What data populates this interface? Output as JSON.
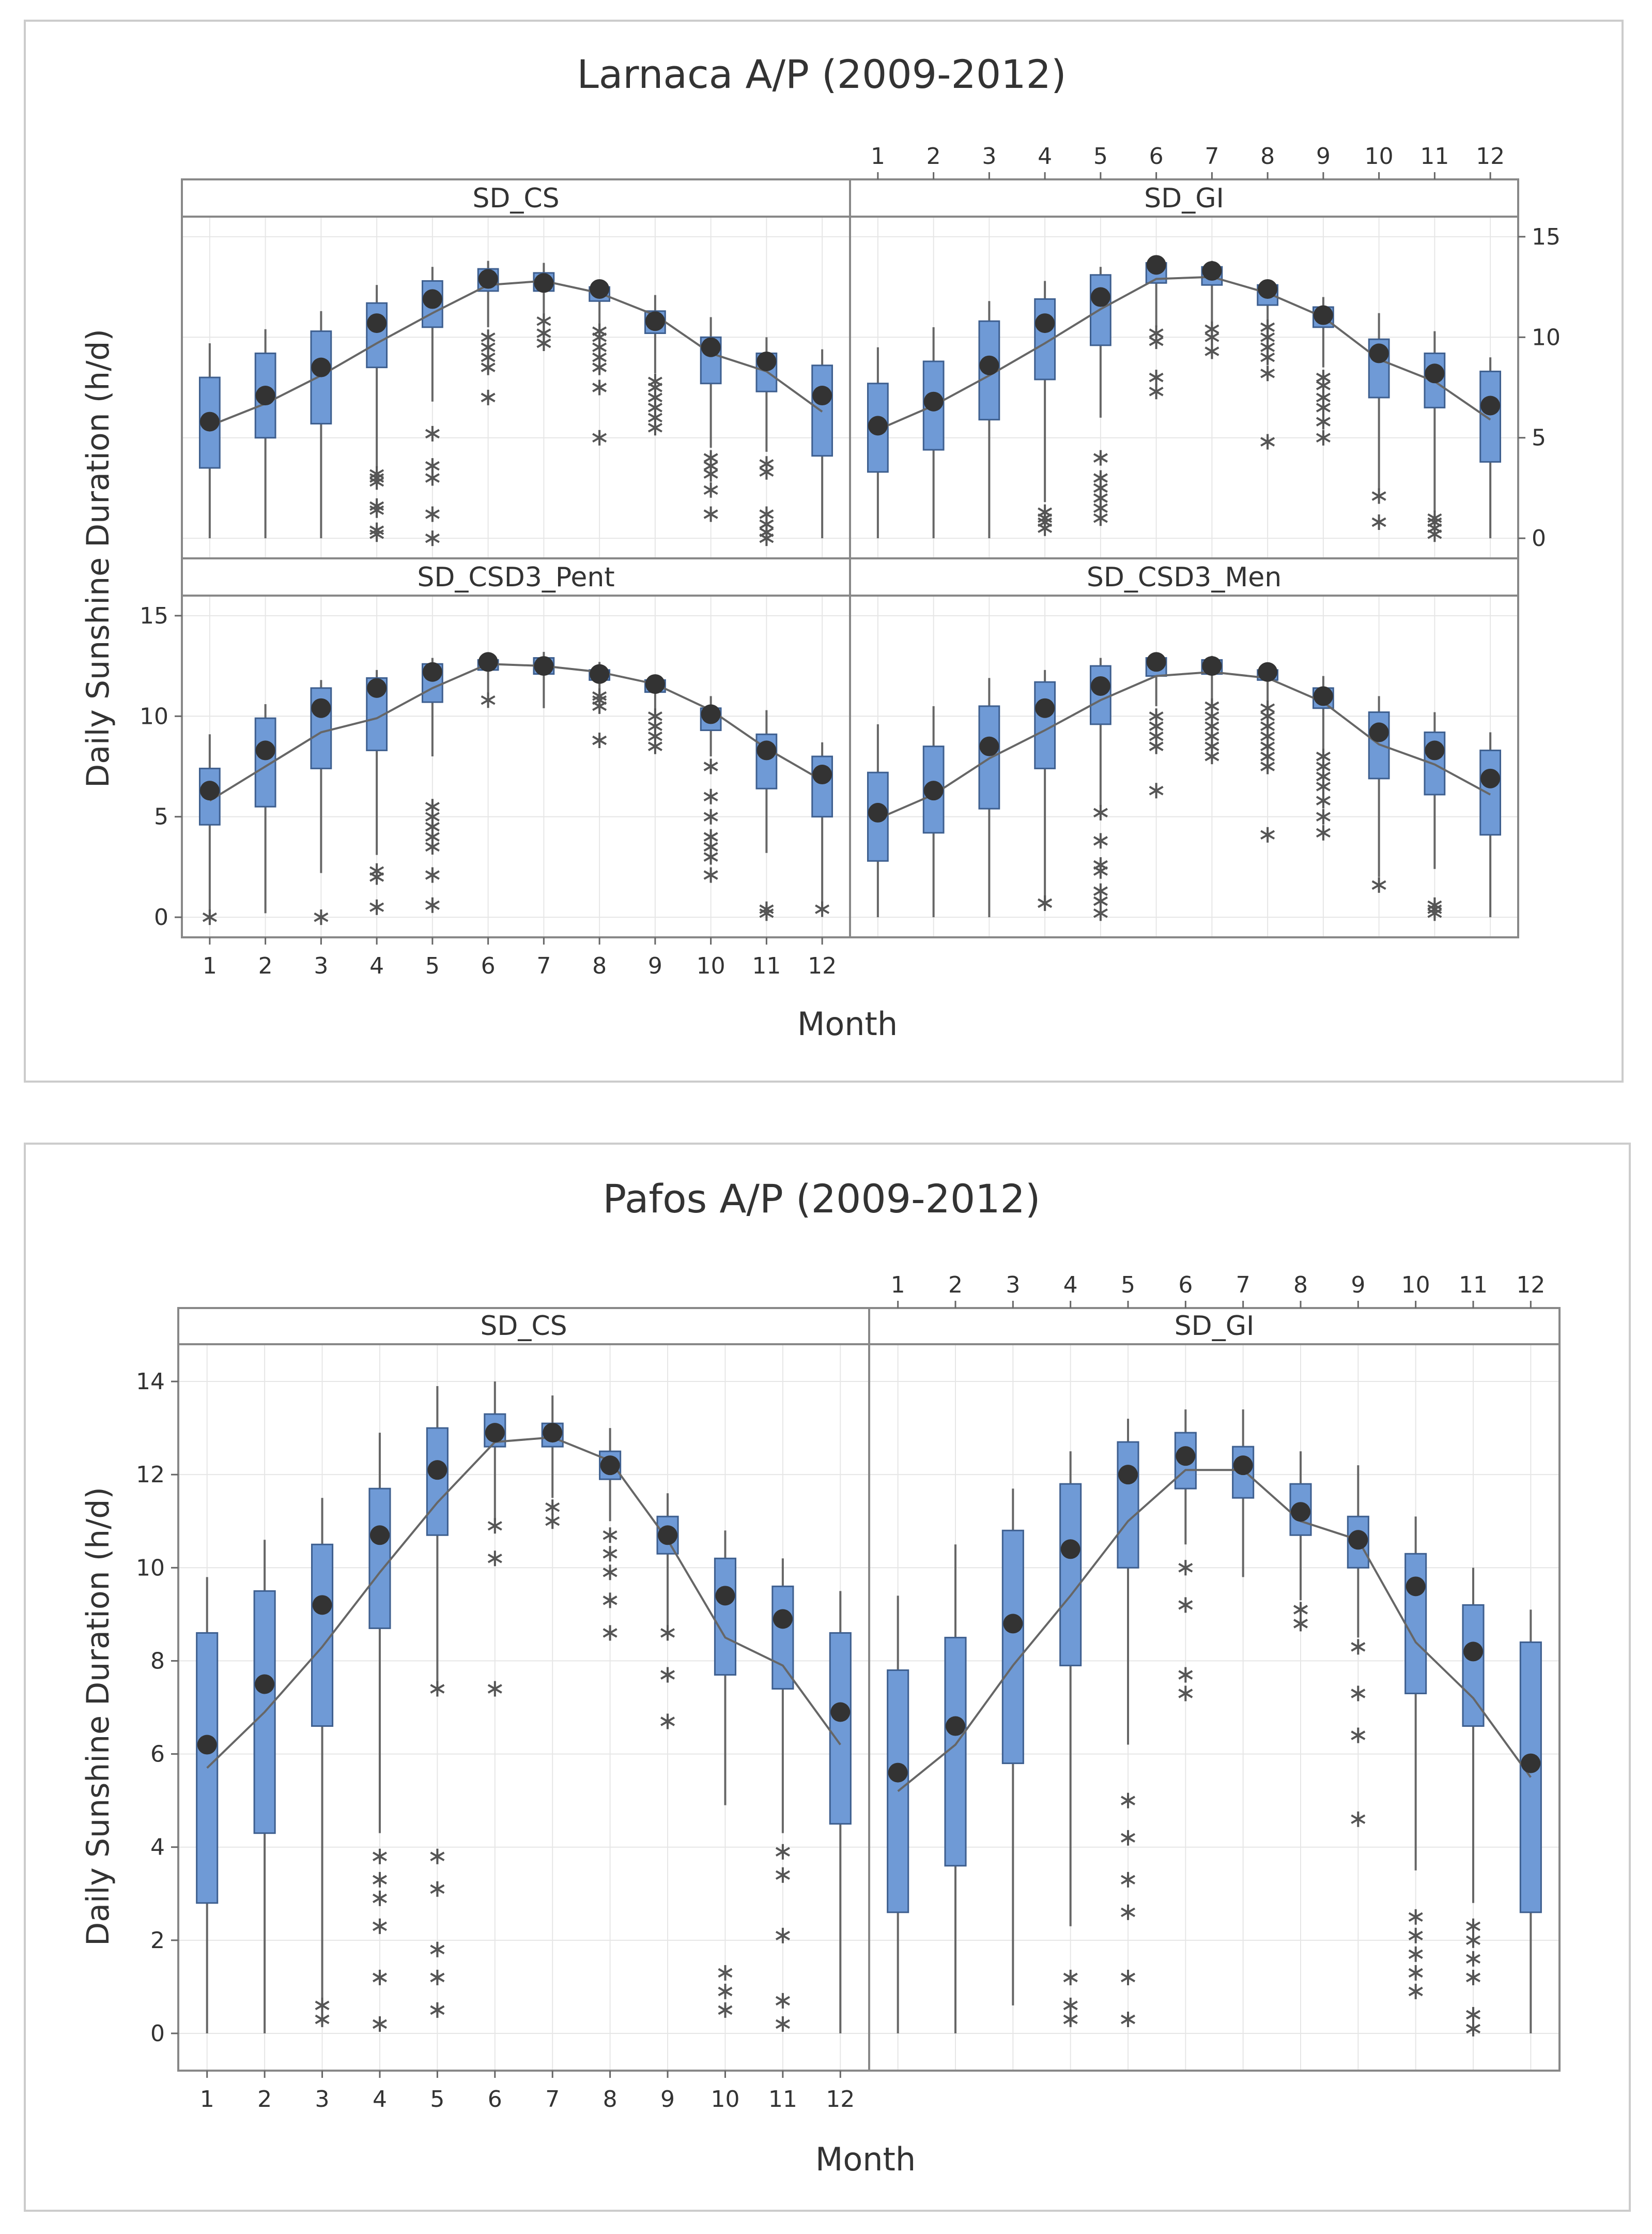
{
  "figures": [
    {
      "title": "Larnaca A/P (2009-2012)",
      "ylabel": "Daily Sunshine Duration (h/d)",
      "xlabel": "Month",
      "yticks": [
        "0",
        "5",
        "10",
        "15"
      ],
      "months": [
        "1",
        "2",
        "3",
        "4",
        "5",
        "6",
        "7",
        "8",
        "9",
        "10",
        "11",
        "12"
      ]
    },
    {
      "title": "Pafos A/P (2009-2012)",
      "ylabel": "Daily Sunshine Duration (h/d)",
      "xlabel": "Month",
      "yticks": [
        "0",
        "2",
        "4",
        "6",
        "8",
        "10",
        "12",
        "14"
      ],
      "months": [
        "1",
        "2",
        "3",
        "4",
        "5",
        "6",
        "7",
        "8",
        "9",
        "10",
        "11",
        "12"
      ]
    }
  ],
  "colors": {
    "box": "#6f9ad6",
    "box_edge": "#3e5f8f",
    "median": "#333333",
    "line": "#666666",
    "grid": "#e6e6e6",
    "frame": "#888888"
  },
  "chart_data": [
    {
      "type": "boxplot",
      "title": "Larnaca A/P (2009-2012)",
      "xlabel": "Month",
      "ylabel": "Daily Sunshine Duration (h/d)",
      "ylim": [
        -1,
        16
      ],
      "categories": [
        "1",
        "2",
        "3",
        "4",
        "5",
        "6",
        "7",
        "8",
        "9",
        "10",
        "11",
        "12"
      ],
      "panels": [
        {
          "name": "SD_CS",
          "q1": [
            3.5,
            5.0,
            5.7,
            8.5,
            10.5,
            12.3,
            12.3,
            11.8,
            10.2,
            7.7,
            7.3,
            4.1
          ],
          "q3": [
            8.0,
            9.2,
            10.3,
            11.7,
            12.8,
            13.4,
            13.2,
            12.5,
            11.3,
            10.0,
            9.2,
            8.6
          ],
          "whisker_low": [
            0,
            0,
            0,
            3.5,
            6.8,
            10.5,
            10.0,
            9.8,
            8.2,
            4.5,
            4.3,
            0
          ],
          "whisker_high": [
            9.7,
            10.4,
            11.3,
            12.6,
            13.5,
            13.8,
            13.7,
            12.8,
            12.1,
            11.0,
            10.0,
            9.4
          ],
          "mean": [
            5.8,
            7.1,
            8.5,
            10.7,
            11.9,
            12.9,
            12.7,
            12.4,
            10.8,
            9.5,
            8.8,
            7.1
          ],
          "mean_line": [
            5.6,
            6.7,
            8.1,
            9.7,
            11.2,
            12.6,
            12.8,
            12.2,
            11.1,
            9.2,
            8.3,
            6.3
          ],
          "outliers": [
            [],
            [],
            [],
            [
              0.2,
              0.4,
              1.4,
              1.6,
              2.8,
              3.0,
              3.2
            ],
            [
              0,
              1.2,
              3.0,
              3.6,
              5.2
            ],
            [
              7.0,
              8.5,
              9.0,
              9.5,
              10.0
            ],
            [
              9.7,
              10.2,
              10.8
            ],
            [
              5.0,
              7.5,
              8.5,
              9.0,
              9.5,
              10.0,
              10.3
            ],
            [
              5.5,
              6.0,
              6.5,
              7.0,
              7.5,
              7.8
            ],
            [
              1.2,
              2.4,
              3.2,
              3.6,
              4.0
            ],
            [
              0,
              0.3,
              0.7,
              1.2,
              3.3,
              3.7
            ],
            []
          ]
        },
        {
          "name": "SD_GI",
          "q1": [
            3.3,
            4.4,
            5.9,
            7.9,
            9.6,
            12.7,
            12.6,
            11.6,
            10.5,
            7.0,
            6.5,
            3.8
          ],
          "q3": [
            7.7,
            8.8,
            10.8,
            11.9,
            13.1,
            13.7,
            13.5,
            12.6,
            11.5,
            9.9,
            9.2,
            8.3
          ],
          "whisker_low": [
            0,
            0,
            0,
            1.8,
            6.0,
            10.5,
            10.5,
            9.8,
            8.5,
            2.4,
            1.3,
            0
          ],
          "whisker_high": [
            9.5,
            10.5,
            11.8,
            12.8,
            13.5,
            13.9,
            13.8,
            12.8,
            12.0,
            11.2,
            10.3,
            9.0
          ],
          "mean": [
            5.6,
            6.8,
            8.6,
            10.7,
            12.0,
            13.6,
            13.3,
            12.4,
            11.1,
            9.2,
            8.2,
            6.6
          ],
          "mean_line": [
            5.4,
            6.6,
            8.1,
            9.7,
            11.4,
            12.9,
            13.0,
            12.2,
            11.0,
            8.9,
            7.8,
            5.9
          ],
          "outliers": [
            [],
            [],
            [],
            [
              0.5,
              0.8,
              1.0,
              1.3
            ],
            [
              1.0,
              1.5,
              2.0,
              2.5,
              3.0,
              4.0
            ],
            [
              7.3,
              8.0,
              9.8,
              10.2
            ],
            [
              9.3,
              10.0,
              10.4
            ],
            [
              4.8,
              8.2,
              9.0,
              9.5,
              10.0,
              10.5
            ],
            [
              5.0,
              5.8,
              6.5,
              7.0,
              7.6,
              8.0
            ],
            [
              0.8,
              2.1
            ],
            [
              0.2,
              0.5,
              0.8,
              1.0
            ],
            []
          ]
        },
        {
          "name": "SD_CSD3_Pent",
          "q1": [
            4.6,
            5.5,
            7.4,
            8.3,
            10.7,
            12.3,
            12.1,
            11.8,
            11.2,
            9.3,
            6.4,
            5.0
          ],
          "q3": [
            7.4,
            9.9,
            11.4,
            11.9,
            12.6,
            12.8,
            12.9,
            12.3,
            11.8,
            10.4,
            9.1,
            8.0
          ],
          "whisker_low": [
            0,
            0.2,
            2.2,
            3.1,
            8.0,
            11.0,
            10.4,
            10.5,
            9.5,
            8.0,
            3.2,
            0.4
          ],
          "whisker_high": [
            9.1,
            10.6,
            11.8,
            12.3,
            12.9,
            13.1,
            13.2,
            12.7,
            12.0,
            11.0,
            10.3,
            8.7
          ],
          "mean": [
            6.3,
            8.3,
            10.4,
            11.4,
            12.2,
            12.7,
            12.5,
            12.1,
            11.6,
            10.1,
            8.3,
            7.1
          ],
          "mean_line": [
            5.8,
            7.5,
            9.2,
            9.9,
            11.4,
            12.6,
            12.5,
            12.2,
            11.6,
            10.3,
            8.4,
            6.8
          ],
          "outliers": [
            [
              0
            ],
            [],
            [
              0
            ],
            [
              0.5,
              2.0,
              2.3
            ],
            [
              0.6,
              2.1,
              3.5,
              4.0,
              4.5,
              5.0,
              5.5
            ],
            [
              10.8
            ],
            [],
            [
              8.8,
              10.5,
              10.8,
              11.0
            ],
            [
              8.5,
              9.0,
              9.5,
              10.0
            ],
            [
              2.1,
              3.0,
              3.5,
              4.0,
              5.0,
              6.0,
              7.5
            ],
            [
              0.2,
              0.4
            ],
            [
              0.4
            ]
          ]
        },
        {
          "name": "SD_CSD3_Men",
          "q1": [
            2.8,
            4.2,
            5.4,
            7.4,
            9.6,
            12.0,
            12.1,
            11.8,
            10.4,
            6.9,
            6.1,
            4.1
          ],
          "q3": [
            7.2,
            8.5,
            10.5,
            11.7,
            12.5,
            12.9,
            12.8,
            12.3,
            11.4,
            10.2,
            9.2,
            8.3
          ],
          "whisker_low": [
            0,
            0,
            0,
            0.8,
            5.5,
            10.5,
            10.5,
            9.5,
            8.2,
            2.0,
            2.4,
            0
          ],
          "whisker_high": [
            9.6,
            10.5,
            11.9,
            12.3,
            12.9,
            13.1,
            13.0,
            12.6,
            12.0,
            11.0,
            10.2,
            9.2
          ],
          "mean": [
            5.2,
            6.3,
            8.5,
            10.4,
            11.5,
            12.7,
            12.5,
            12.2,
            11.0,
            9.2,
            8.3,
            6.9
          ],
          "mean_line": [
            4.9,
            6.1,
            7.9,
            9.3,
            10.8,
            12.0,
            12.2,
            11.9,
            10.7,
            8.6,
            7.6,
            6.1
          ],
          "outliers": [
            [],
            [],
            [],
            [
              0.7,
              0.7
            ],
            [
              0.2,
              0.8,
              1.3,
              2.3,
              2.6,
              3.8,
              5.2
            ],
            [
              6.3,
              8.5,
              9.0,
              9.5,
              10.0
            ],
            [
              8.0,
              8.5,
              9.0,
              9.5,
              10.0,
              10.5
            ],
            [
              4.1,
              7.5,
              8.0,
              8.5,
              9.0,
              9.5,
              10.0,
              10.4
            ],
            [
              4.2,
              5.0,
              5.8,
              6.5,
              7.0,
              7.5,
              8.0
            ],
            [
              1.6
            ],
            [
              0.2,
              0.4,
              0.6
            ],
            []
          ]
        }
      ]
    },
    {
      "type": "boxplot",
      "title": "Pafos A/P (2009-2012)",
      "xlabel": "Month",
      "ylabel": "Daily Sunshine Duration (h/d)",
      "ylim": [
        -0.8,
        14.8
      ],
      "categories": [
        "1",
        "2",
        "3",
        "4",
        "5",
        "6",
        "7",
        "8",
        "9",
        "10",
        "11",
        "12"
      ],
      "panels": [
        {
          "name": "SD_CS",
          "q1": [
            2.8,
            4.3,
            6.6,
            8.7,
            10.7,
            12.6,
            12.6,
            11.9,
            10.3,
            7.7,
            7.4,
            4.5
          ],
          "q3": [
            8.6,
            9.5,
            10.5,
            11.7,
            13.0,
            13.3,
            13.1,
            12.5,
            11.1,
            10.2,
            9.6,
            8.6
          ],
          "whisker_low": [
            0,
            0,
            0.5,
            4.3,
            7.5,
            11.0,
            11.5,
            11.0,
            8.7,
            4.9,
            4.3,
            0
          ],
          "whisker_high": [
            9.8,
            10.6,
            11.5,
            12.9,
            13.9,
            14.0,
            13.7,
            13.0,
            11.6,
            10.8,
            10.2,
            9.5
          ],
          "mean": [
            6.2,
            7.5,
            9.2,
            10.7,
            12.1,
            12.9,
            12.9,
            12.2,
            10.7,
            9.4,
            8.9,
            6.9
          ],
          "mean_line": [
            5.7,
            6.9,
            8.3,
            9.9,
            11.4,
            12.7,
            12.8,
            12.3,
            10.6,
            8.5,
            7.9,
            6.2
          ],
          "outliers": [
            [],
            [],
            [
              0.3,
              0.6
            ],
            [
              0.2,
              1.2,
              2.3,
              2.9,
              3.3,
              3.8
            ],
            [
              0.5,
              1.2,
              1.8,
              3.1,
              3.8,
              7.4
            ],
            [
              7.4,
              10.2,
              10.9
            ],
            [
              11.0,
              11.3
            ],
            [
              8.6,
              9.3,
              9.9,
              10.3,
              10.7
            ],
            [
              6.7,
              7.7,
              8.6
            ],
            [
              0.5,
              0.9,
              1.3
            ],
            [
              0.2,
              0.7,
              2.1,
              3.4,
              3.9
            ],
            []
          ]
        },
        {
          "name": "SD_GI",
          "q1": [
            2.6,
            3.6,
            5.8,
            7.9,
            10.0,
            11.7,
            11.5,
            10.7,
            10.0,
            7.3,
            6.6,
            2.6
          ],
          "q3": [
            7.8,
            8.5,
            10.8,
            11.8,
            12.7,
            12.9,
            12.6,
            11.8,
            11.1,
            10.3,
            9.2,
            8.4
          ],
          "whisker_low": [
            0,
            0,
            0.6,
            2.3,
            6.2,
            10.5,
            9.8,
            9.3,
            8.5,
            3.5,
            2.8,
            0
          ],
          "whisker_high": [
            9.4,
            10.5,
            11.7,
            12.5,
            13.2,
            13.4,
            13.4,
            12.5,
            12.2,
            11.1,
            10.0,
            9.1
          ],
          "mean": [
            5.6,
            6.6,
            8.8,
            10.4,
            12.0,
            12.4,
            12.2,
            11.2,
            10.6,
            9.6,
            8.2,
            5.8
          ],
          "mean_line": [
            5.2,
            6.2,
            7.9,
            9.4,
            11.0,
            12.1,
            12.1,
            11.0,
            10.6,
            8.4,
            7.2,
            5.5
          ],
          "outliers": [
            [],
            [],
            [],
            [
              0.3,
              0.6,
              1.2
            ],
            [
              0.3,
              1.2,
              2.6,
              3.3,
              4.2,
              5.0
            ],
            [
              7.3,
              7.7,
              9.2,
              10.0
            ],
            [],
            [
              8.8,
              9.1
            ],
            [
              4.6,
              6.4,
              7.3,
              8.3
            ],
            [
              0.9,
              1.3,
              1.7,
              2.1,
              2.5
            ],
            [
              0.1,
              0.4,
              1.2,
              1.6,
              2.0,
              2.3
            ],
            []
          ]
        }
      ]
    }
  ]
}
